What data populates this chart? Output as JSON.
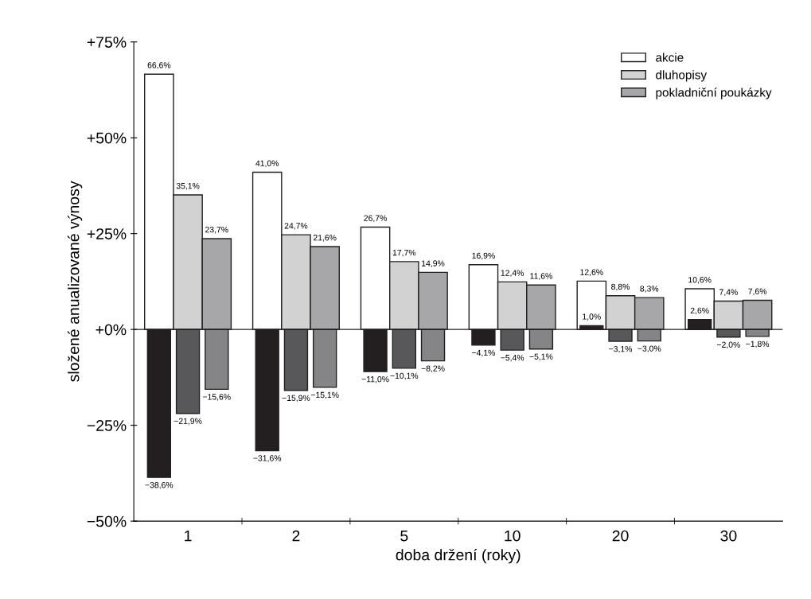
{
  "chart_data": {
    "type": "bar",
    "xlabel": "doba držení (roky)",
    "ylabel": "složené anualizované výnosy",
    "categories": [
      "1",
      "2",
      "5",
      "10",
      "20",
      "30"
    ],
    "ylim": [
      -50,
      75
    ],
    "yticks": [
      {
        "value": 75,
        "label": "+75%"
      },
      {
        "value": 50,
        "label": "+50%"
      },
      {
        "value": 25,
        "label": "+25%"
      },
      {
        "value": 0,
        "label": "+0%"
      },
      {
        "value": -25,
        "label": "−25%"
      },
      {
        "value": -50,
        "label": "−50%"
      }
    ],
    "grid": false,
    "legend": "top right",
    "ref_lines": [
      {
        "axis": "y",
        "value": 0,
        "color": "#231f20"
      }
    ],
    "series": [
      {
        "name": "akcie",
        "color": "#ffffff",
        "values": [
          66.6,
          41.0,
          26.7,
          16.9,
          12.6,
          10.6
        ],
        "value_labels": [
          "66,6%",
          "41,0%",
          "26,7%",
          "16,9%",
          "12,6%",
          "10,6%"
        ]
      },
      {
        "color": "#231f20",
        "values": [
          -38.6,
          -31.6,
          -11.0,
          -4.1,
          1.0,
          2.6
        ],
        "value_labels": [
          "−38,6%",
          "−31,6%",
          "−11,0%",
          "−4,1%",
          "1,0%",
          "2,6%"
        ]
      },
      {
        "name": "dluhopisy",
        "color": "#d2d2d2",
        "values": [
          35.1,
          24.7,
          17.7,
          12.4,
          8.8,
          7.4
        ],
        "value_labels": [
          "35,1%",
          "24,7%",
          "17,7%",
          "12,4%",
          "8,8%",
          "7,4%"
        ]
      },
      {
        "color": "#58585a",
        "values": [
          -21.9,
          -15.9,
          -10.1,
          -5.4,
          -3.1,
          -2.0
        ],
        "value_labels": [
          "−21,9%",
          "−15,9%",
          "−10,1%",
          "−5,4%",
          "−3,1%",
          "−2,0%"
        ]
      },
      {
        "name": "pokladniční poukázky",
        "color": "#a7a7a9",
        "values": [
          23.7,
          21.6,
          14.9,
          11.6,
          8.3,
          7.6
        ],
        "value_labels": [
          "23,7%",
          "21,6%",
          "14,9%",
          "11,6%",
          "8,3%",
          "7,6%"
        ]
      },
      {
        "color": "#858587",
        "values": [
          -15.6,
          -15.1,
          -8.2,
          -5.1,
          -3.0,
          -1.8
        ],
        "value_labels": [
          "−15,6%",
          "−15,1%",
          "−8,2%",
          "−5,1%",
          "−3,0%",
          "−1,8%"
        ]
      }
    ]
  }
}
